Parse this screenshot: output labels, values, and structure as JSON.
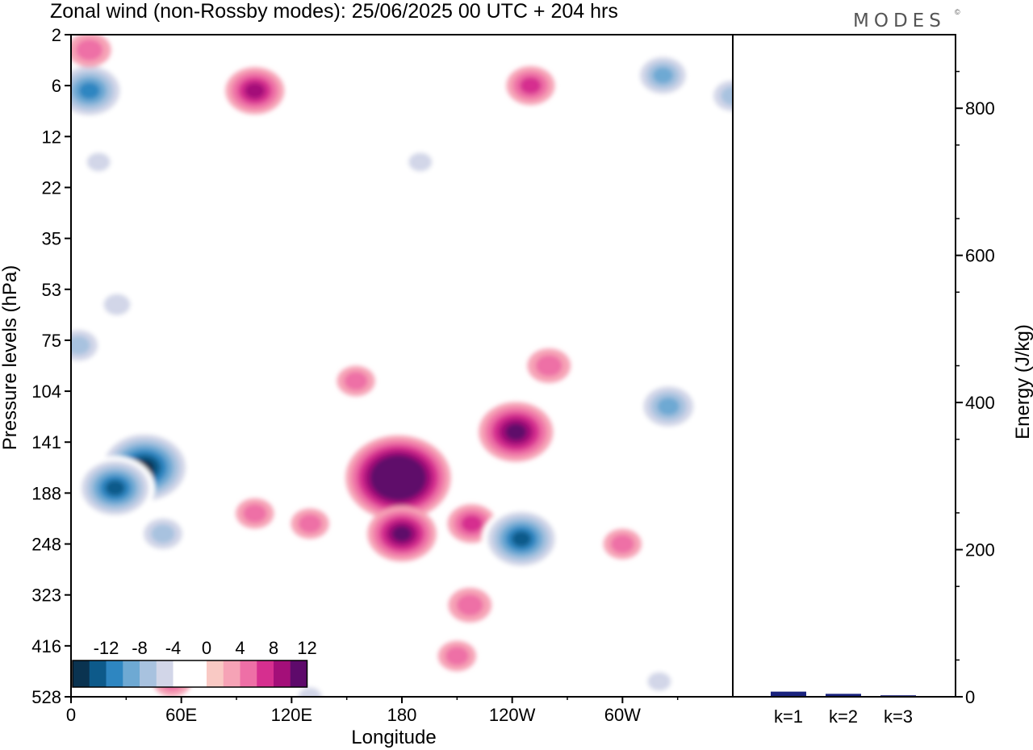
{
  "title": "Zonal wind (non-Rossby modes):  25/06/2025  00 UTC  + 204 hrs",
  "logo": "MODES",
  "logo_mark": "©",
  "chart_data": [
    {
      "type": "heatmap",
      "title": "Zonal wind (non-Rossby modes):  25/06/2025  00 UTC  + 204 hrs",
      "xlabel": "Longitude",
      "ylabel": "Pressure levels (hPa)",
      "x_ticks": [
        "0",
        "60E",
        "120E",
        "180",
        "120W",
        "60W"
      ],
      "x_tick_degrees": [
        0,
        60,
        120,
        180,
        240,
        300
      ],
      "xlim": [
        0,
        360
      ],
      "y_ticks": [
        "2",
        "6",
        "12",
        "22",
        "35",
        "53",
        "75",
        "104",
        "141",
        "188",
        "248",
        "323",
        "416",
        "528"
      ],
      "y_scale": "category levels, pressure increasing downward",
      "colorbar": {
        "labels": [
          "-12",
          "-8",
          "-4",
          "0",
          "4",
          "8",
          "12"
        ],
        "bins": [
          -16,
          -14,
          -12,
          -10,
          -8,
          -6,
          -4,
          -2,
          0,
          2,
          4,
          6,
          8,
          10,
          12,
          14,
          16
        ],
        "colors": [
          "#0a3350",
          "#0d5a8a",
          "#2e86c1",
          "#6ea9d3",
          "#a8c2df",
          "#d2d6e8",
          "#ffffff",
          "#ffffff",
          "#f9c9c4",
          "#f6a3b6",
          "#ee6fa6",
          "#d62f8f",
          "#a40f79",
          "#5e0a6b"
        ],
        "placement": "bottom-left inside plot"
      },
      "blobs": [
        {
          "lon": 40,
          "level": 8.5,
          "value": -14
        },
        {
          "lon": 24,
          "level": 8.9,
          "value": -11
        },
        {
          "lon": 50,
          "level": 9.8,
          "value": -6
        },
        {
          "lon": 10,
          "level": 1.1,
          "value": -10
        },
        {
          "lon": 4,
          "level": 6.1,
          "value": -6
        },
        {
          "lon": 25,
          "level": 5.3,
          "value": -4
        },
        {
          "lon": 15,
          "level": 2.5,
          "value": -3
        },
        {
          "lon": 100,
          "level": 1.1,
          "value": 7
        },
        {
          "lon": 10,
          "level": 0.3,
          "value": 4
        },
        {
          "lon": 155,
          "level": 6.8,
          "value": 3
        },
        {
          "lon": 178,
          "level": 8.7,
          "value": 16
        },
        {
          "lon": 180,
          "level": 9.8,
          "value": 9
        },
        {
          "lon": 218,
          "level": 9.6,
          "value": 5
        },
        {
          "lon": 242,
          "level": 7.8,
          "value": 10
        },
        {
          "lon": 260,
          "level": 6.5,
          "value": 4
        },
        {
          "lon": 217,
          "level": 11.2,
          "value": 4
        },
        {
          "lon": 210,
          "level": 12.2,
          "value": 3
        },
        {
          "lon": 250,
          "level": 1.0,
          "value": 5
        },
        {
          "lon": 245,
          "level": 9.9,
          "value": -11
        },
        {
          "lon": 325,
          "level": 7.3,
          "value": -8
        },
        {
          "lon": 322,
          "level": 0.8,
          "value": -7
        },
        {
          "lon": 360,
          "level": 1.2,
          "value": -6
        },
        {
          "lon": 300,
          "level": 10.0,
          "value": 3
        },
        {
          "lon": 55,
          "level": 12.7,
          "value": 3
        },
        {
          "lon": 100,
          "level": 9.4,
          "value": 3
        },
        {
          "lon": 130,
          "level": 9.6,
          "value": 3
        },
        {
          "lon": 190,
          "level": 2.5,
          "value": -3
        },
        {
          "lon": 320,
          "level": 12.7,
          "value": -3
        },
        {
          "lon": 130,
          "level": 13.0,
          "value": -3
        }
      ]
    },
    {
      "type": "bar",
      "ylabel": "Energy (J/kg)",
      "categories": [
        "k=1",
        "k=2",
        "k=3"
      ],
      "values": [
        7,
        4,
        2
      ],
      "ylim": [
        0,
        900
      ],
      "y_ticks": [
        "0",
        "200",
        "400",
        "600",
        "800"
      ],
      "bar_color": "#1a237e"
    }
  ]
}
